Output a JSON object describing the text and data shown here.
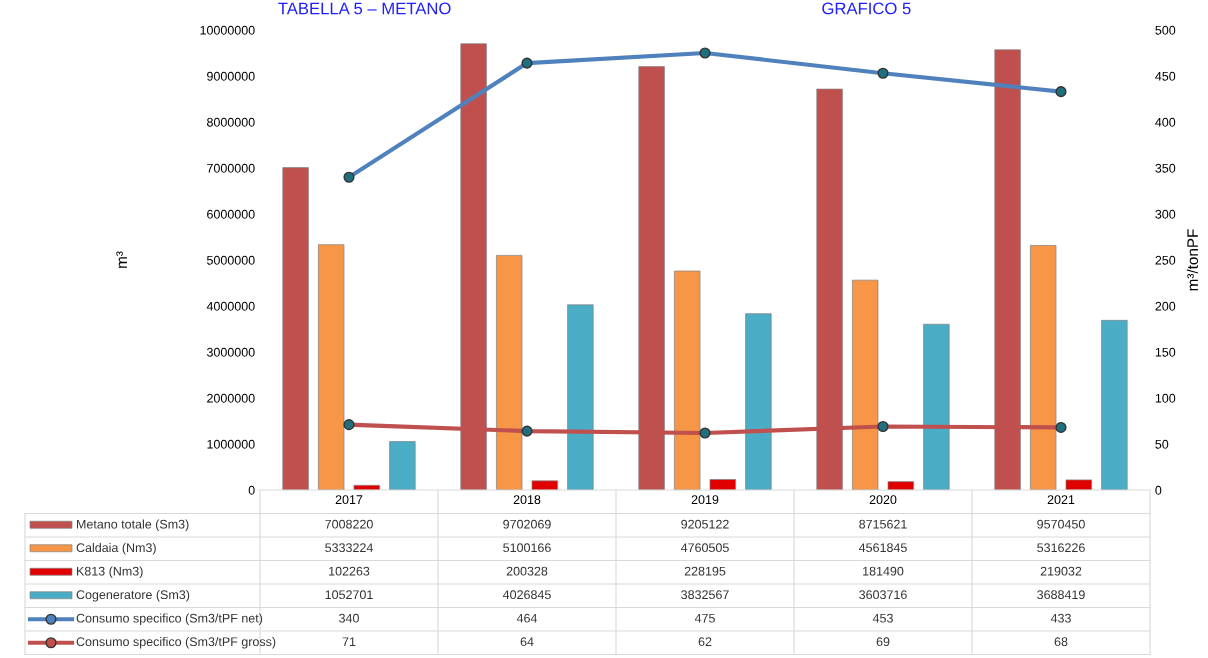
{
  "chart_data": {
    "type": "bar",
    "annotations": [
      "TABELLA 5 – METANO",
      "GRAFICO 5"
    ],
    "ylabel": "m³",
    "y2label": "m³/tonPF",
    "categories": [
      "2017",
      "2018",
      "2019",
      "2020",
      "2021"
    ],
    "series": [
      {
        "name": "Metano totale (Sm3)",
        "color": "#c0504d",
        "values": [
          7008220,
          9702069,
          9205122,
          8715621,
          9570450
        ]
      },
      {
        "name": "Caldaia (Nm3)",
        "color": "#f79646",
        "values": [
          5333224,
          5100166,
          4760505,
          4561845,
          5316226
        ]
      },
      {
        "name": "K813 (Nm3)",
        "color": "#e00000",
        "values": [
          102263,
          200328,
          228195,
          181490,
          219032
        ]
      },
      {
        "name": "Cogeneratore (Sm3)",
        "color": "#4bacc6",
        "values": [
          1052701,
          4026845,
          3832567,
          3603716,
          3688419
        ]
      },
      {
        "name": "Consumo specifico (Sm3/tPF net)",
        "type": "line",
        "axis": "y2",
        "color": "#4f81bd",
        "values": [
          340,
          464,
          475,
          453,
          433
        ]
      },
      {
        "name": "Consumo specifico (Sm3/tPF gross)",
        "type": "line",
        "axis": "y2",
        "color": "#c0504d",
        "values": [
          71,
          64,
          62,
          69,
          68
        ]
      }
    ],
    "ylim": [
      0,
      10000000
    ],
    "yticks": [
      0,
      1000000,
      2000000,
      3000000,
      4000000,
      5000000,
      6000000,
      7000000,
      8000000,
      9000000,
      10000000
    ],
    "y2lim": [
      0,
      500
    ],
    "y2ticks": [
      0,
      50,
      100,
      150,
      200,
      250,
      300,
      350,
      400,
      450,
      500
    ],
    "marker": "circle",
    "line_style": "solid",
    "data_labels": true,
    "legend": "bottom",
    "grid": false
  }
}
